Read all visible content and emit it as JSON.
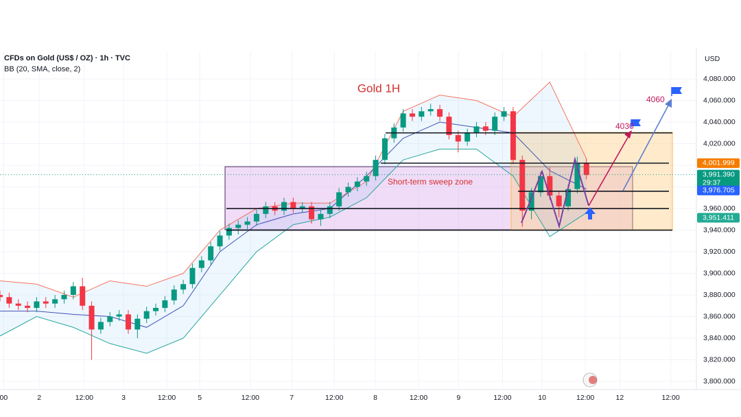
{
  "chart_data": {
    "type": "candlestick",
    "symbol": "CFDs on Gold (US$ / OZ) · 1h · TVC",
    "indicator": "BB (20, SMA, close, 2)",
    "currency": "USD",
    "title": "Gold 1H",
    "zone_label": "Short-term sweep zone",
    "annotations": [
      4030,
      4060
    ],
    "countdown": "29:37",
    "xlim": [
      0,
      190
    ],
    "ylim": [
      3792.4,
      4105.4
    ],
    "xticks": [
      {
        "value": 1,
        "label": "00"
      },
      {
        "value": 10.7,
        "label": "2"
      },
      {
        "value": 23,
        "label": "12:00"
      },
      {
        "value": 33.7,
        "label": "3"
      },
      {
        "value": 45.5,
        "label": "12:00"
      },
      {
        "value": 54.5,
        "label": "5"
      },
      {
        "value": 68.3,
        "label": "12:00"
      },
      {
        "value": 79.6,
        "label": "7"
      },
      {
        "value": 91.2,
        "label": "12:00"
      },
      {
        "value": 102.4,
        "label": "8"
      },
      {
        "value": 114.2,
        "label": "12:00"
      },
      {
        "value": 125.1,
        "label": "9"
      },
      {
        "value": 137.1,
        "label": "12:00"
      },
      {
        "value": 147.9,
        "label": "10"
      },
      {
        "value": 159.7,
        "label": "12:00"
      },
      {
        "value": 169.1,
        "label": "12"
      },
      {
        "value": 183,
        "label": "12:00"
      }
    ],
    "yticks": [
      {
        "value": 3800,
        "label": "3,800.000"
      },
      {
        "value": 3820,
        "label": "3,820.000"
      },
      {
        "value": 3840,
        "label": "3,840.000"
      },
      {
        "value": 3860,
        "label": "3,860.000"
      },
      {
        "value": 3880,
        "label": "3,880.000"
      },
      {
        "value": 3900,
        "label": "3,900.000"
      },
      {
        "value": 3920,
        "label": "3,920.000"
      },
      {
        "value": 3940,
        "label": "3,940.000"
      },
      {
        "value": 3960,
        "label": "3,960.000"
      },
      {
        "value": 3980,
        "label": "3,980.000"
      },
      {
        "value": 4000,
        "label": "4,000.000"
      },
      {
        "value": 4020,
        "label": "4,020.000"
      },
      {
        "value": 4040,
        "label": "4,040.000"
      },
      {
        "value": 4060,
        "label": "4,060.000"
      },
      {
        "value": 4080,
        "label": "4,080.000"
      }
    ],
    "price_tags": [
      {
        "value": 4001.999,
        "label": "4,001.999",
        "color": "#f57c00"
      },
      {
        "value": 3991.39,
        "label": "3,991.390",
        "color": "#089981"
      },
      {
        "value": 3976.705,
        "label": "3,976.705",
        "color": "#2962ff"
      },
      {
        "value": 3951.411,
        "label": "3,951.411",
        "color": "#22ab94"
      }
    ],
    "levels": [
      4030,
      4002,
      3976,
      3960,
      3940
    ],
    "up_color": "#089981",
    "down_color": "#f23645",
    "candles": {
      "x": [
        0,
        2.5,
        5,
        7.5,
        10,
        12.5,
        15,
        17.5,
        20,
        22.5,
        25,
        27.5,
        30,
        32.5,
        35,
        37.5,
        40,
        42.5,
        45,
        47.5,
        50,
        52.5,
        55,
        57.5,
        60,
        62.5,
        65,
        67.5,
        70,
        72.5,
        75,
        77.5,
        80,
        82.5,
        85,
        87.5,
        90,
        92.5,
        95,
        97.5,
        100,
        102.5,
        105,
        107.5,
        110,
        112.5,
        115,
        117.5,
        120,
        122.5,
        125,
        127.5,
        130,
        132.5,
        135,
        137.5,
        140,
        142.5,
        145,
        147.5,
        150,
        152.5,
        155,
        157.5,
        160
      ],
      "open": [
        3880,
        3878,
        3872,
        3870,
        3868,
        3874,
        3872,
        3876,
        3880,
        3888,
        3870,
        3848,
        3855,
        3860,
        3862,
        3848,
        3858,
        3865,
        3868,
        3875,
        3885,
        3890,
        3905,
        3912,
        3925,
        3935,
        3942,
        3945,
        3948,
        3955,
        3962,
        3958,
        3966,
        3960,
        3962,
        3950,
        3955,
        3962,
        3975,
        3980,
        3985,
        3990,
        4005,
        4025,
        4035,
        4048,
        4045,
        4050,
        4052,
        4045,
        4028,
        4022,
        4030,
        4036,
        4032,
        4045,
        4050,
        4005,
        3958,
        3975,
        3990,
        3972,
        3962,
        3978,
        4002
      ],
      "high": [
        3884,
        3882,
        3876,
        3874,
        3878,
        3878,
        3880,
        3884,
        3892,
        3896,
        3874,
        3859,
        3864,
        3866,
        3866,
        3862,
        3869,
        3872,
        3879,
        3889,
        3894,
        3909,
        3916,
        3929,
        3939,
        3946,
        3949,
        3952,
        3959,
        3966,
        3966,
        3970,
        3970,
        3966,
        3966,
        3959,
        3966,
        3979,
        3984,
        3989,
        3994,
        4009,
        4029,
        4039,
        4052,
        4052,
        4054,
        4057,
        4056,
        4049,
        4032,
        4034,
        4040,
        4040,
        4049,
        4054,
        4054,
        4009,
        3979,
        3994,
        3998,
        3976,
        3982,
        4008,
        4006
      ],
      "low": [
        3874,
        3868,
        3866,
        3864,
        3864,
        3868,
        3868,
        3872,
        3876,
        3866,
        3820,
        3844,
        3851,
        3856,
        3844,
        3840,
        3854,
        3861,
        3864,
        3871,
        3881,
        3886,
        3901,
        3908,
        3921,
        3931,
        3936,
        3941,
        3944,
        3951,
        3954,
        3954,
        3956,
        3956,
        3946,
        3944,
        3951,
        3958,
        3971,
        3976,
        3981,
        3986,
        4001,
        4021,
        4031,
        4041,
        4041,
        4046,
        4041,
        4024,
        4012,
        4018,
        4026,
        4028,
        4028,
        4041,
        4001,
        3943,
        3950,
        3971,
        3968,
        3952,
        3958,
        3974,
        3987
      ],
      "close": [
        3878,
        3872,
        3870,
        3868,
        3874,
        3872,
        3876,
        3880,
        3888,
        3870,
        3848,
        3855,
        3860,
        3862,
        3848,
        3858,
        3865,
        3868,
        3875,
        3885,
        3890,
        3905,
        3912,
        3925,
        3935,
        3942,
        3945,
        3948,
        3955,
        3962,
        3958,
        3966,
        3960,
        3962,
        3950,
        3955,
        3962,
        3975,
        3980,
        3985,
        3990,
        4005,
        4025,
        4035,
        4048,
        4045,
        4050,
        4052,
        4045,
        4028,
        4022,
        4030,
        4036,
        4032,
        4045,
        4050,
        4005,
        3958,
        3975,
        3990,
        3972,
        3962,
        3978,
        4002,
        3991
      ]
    },
    "bands": {
      "x": [
        0,
        10,
        20,
        30,
        40,
        50,
        60,
        70,
        80,
        90,
        100,
        110,
        120,
        130,
        140,
        150,
        160
      ],
      "upper": [
        3893,
        3890,
        3878,
        3893,
        3888,
        3900,
        3940,
        3960,
        3965,
        3965,
        3985,
        4050,
        4065,
        4060,
        4045,
        4077,
        4006
      ],
      "middle": [
        3865,
        3865,
        3862,
        3860,
        3850,
        3870,
        3920,
        3945,
        3955,
        3960,
        3990,
        4025,
        4040,
        4035,
        4030,
        3995,
        3978
      ],
      "lower": [
        3842,
        3860,
        3850,
        3835,
        3826,
        3840,
        3880,
        3920,
        3945,
        3952,
        3970,
        4005,
        4015,
        4015,
        3990,
        3934,
        3956
      ],
      "upper_color": "#f7725f",
      "middle_color": "#3f51b5",
      "lower_color": "#26a69a"
    }
  }
}
